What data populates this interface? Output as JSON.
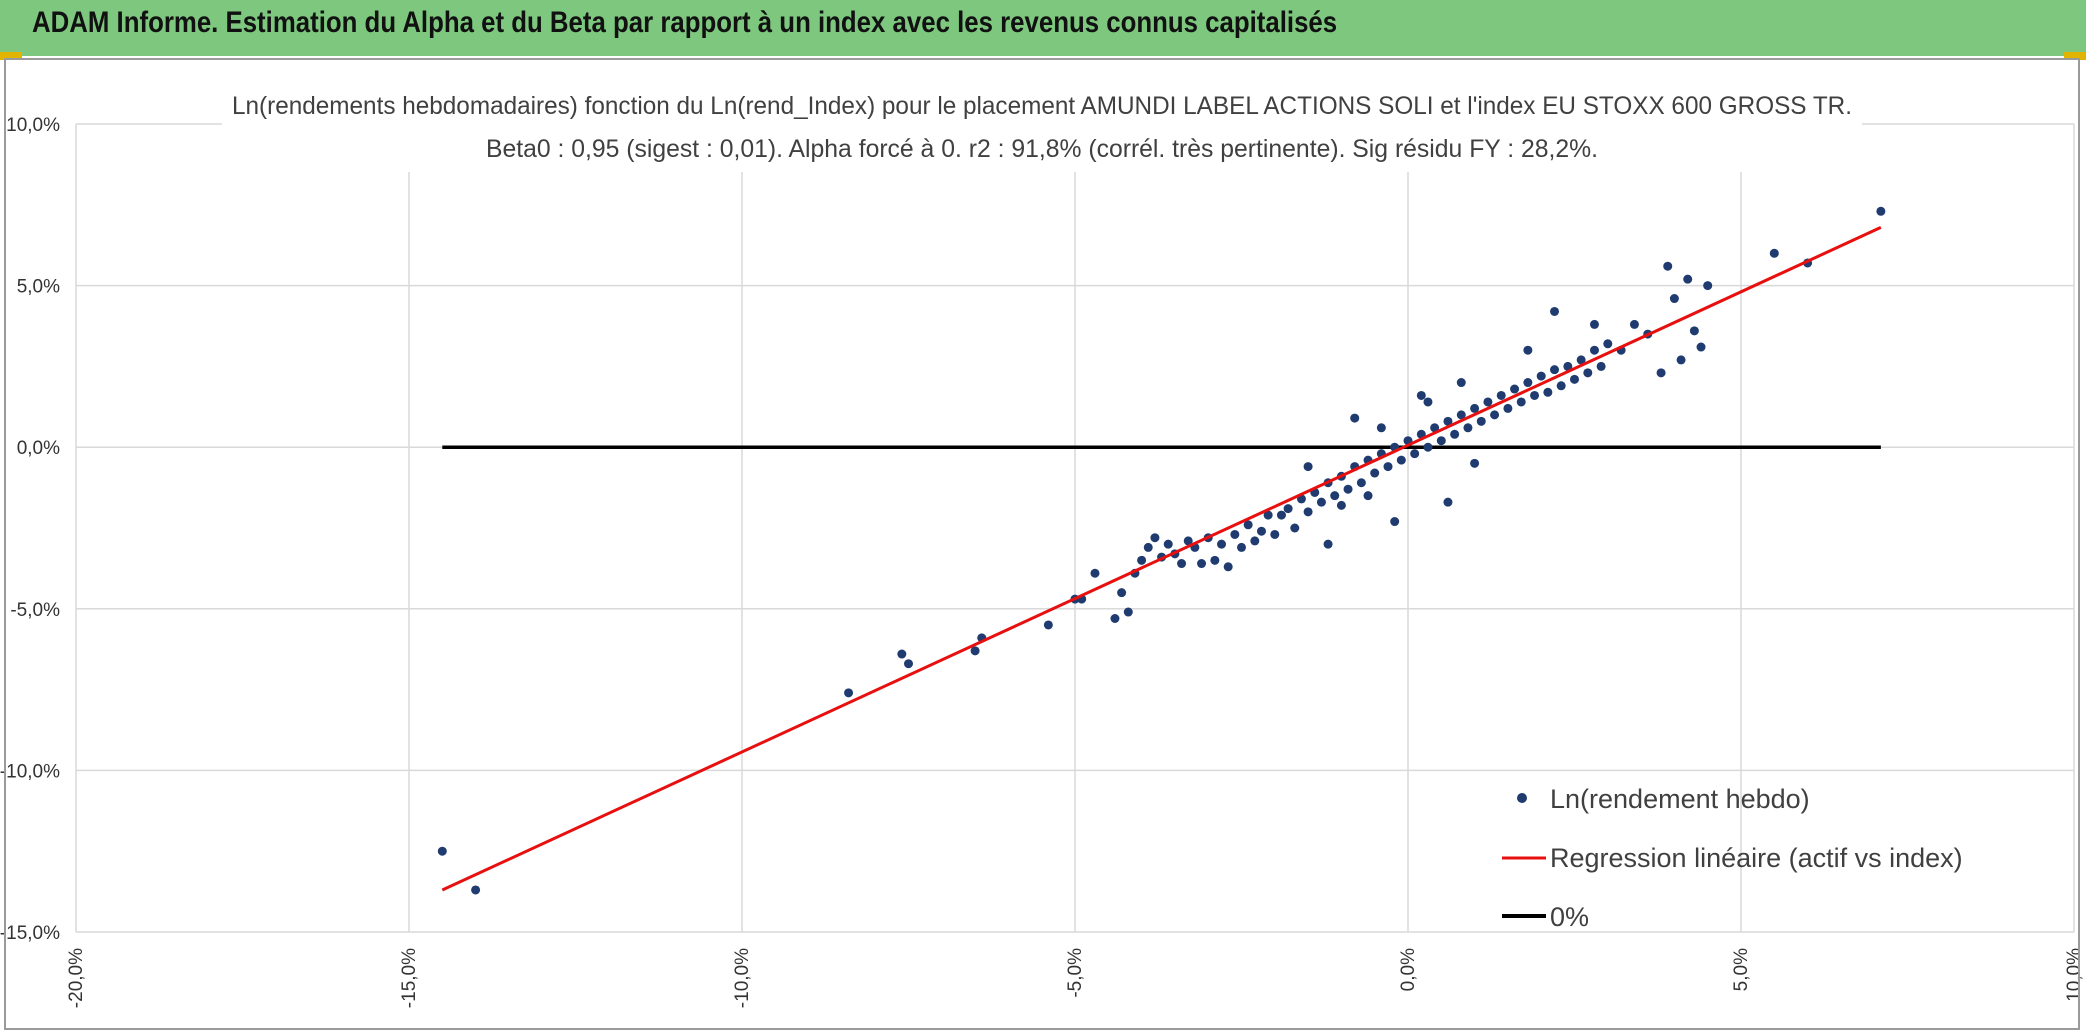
{
  "header": {
    "title": "ADAM Informe. Estimation du Alpha et du Beta par rapport à un index avec les revenus connus capitalisés",
    "background": "#7dc87e"
  },
  "chart_data": {
    "type": "scatter",
    "title_line1": "Ln(rendements hebdomadaires) fonction du Ln(rend_Index) pour le placement AMUNDI LABEL ACTIONS SOLI et l'index EU STOXX 600 GROSS TR.",
    "title_line2": "Beta0 : 0,95 (sigest : 0,01). Alpha forcé à 0. r2 : 91,8% (corrél. très pertinente). Sig résidu FY : 28,2%.",
    "xlabel": "",
    "ylabel": "",
    "xlim": [
      -0.2,
      0.1
    ],
    "ylim": [
      -0.15,
      0.1
    ],
    "x_ticks": [
      -0.2,
      -0.15,
      -0.1,
      -0.05,
      0.0,
      0.05,
      0.1
    ],
    "x_tick_labels": [
      "-20,0%",
      "-15,0%",
      "-10,0%",
      "-5,0%",
      "0,0%",
      "5,0%",
      "10,0%"
    ],
    "y_ticks": [
      0.1,
      0.05,
      0.0,
      -0.05,
      -0.1,
      -0.15
    ],
    "y_tick_labels": [
      "10,0%",
      "5,0%",
      "0,0%",
      "-5,0%",
      "-10,0%",
      "-15,0%"
    ],
    "grid": true,
    "legend_position": "bottom-right",
    "series": [
      {
        "name": "Ln(rendement hebdo)",
        "type": "scatter",
        "color": "#1f3b70",
        "points": [
          [
            -0.145,
            -0.125
          ],
          [
            -0.14,
            -0.137
          ],
          [
            -0.084,
            -0.076
          ],
          [
            -0.076,
            -0.064
          ],
          [
            -0.075,
            -0.067
          ],
          [
            -0.065,
            -0.063
          ],
          [
            -0.064,
            -0.059
          ],
          [
            -0.054,
            -0.055
          ],
          [
            -0.05,
            -0.047
          ],
          [
            -0.049,
            -0.047
          ],
          [
            -0.047,
            -0.039
          ],
          [
            -0.044,
            -0.053
          ],
          [
            -0.043,
            -0.045
          ],
          [
            -0.042,
            -0.051
          ],
          [
            -0.041,
            -0.039
          ],
          [
            -0.04,
            -0.035
          ],
          [
            -0.039,
            -0.031
          ],
          [
            -0.038,
            -0.028
          ],
          [
            -0.037,
            -0.034
          ],
          [
            -0.036,
            -0.03
          ],
          [
            -0.035,
            -0.033
          ],
          [
            -0.034,
            -0.036
          ],
          [
            -0.033,
            -0.029
          ],
          [
            -0.032,
            -0.031
          ],
          [
            -0.031,
            -0.036
          ],
          [
            -0.03,
            -0.028
          ],
          [
            -0.029,
            -0.035
          ],
          [
            -0.028,
            -0.03
          ],
          [
            -0.027,
            -0.037
          ],
          [
            -0.026,
            -0.027
          ],
          [
            -0.025,
            -0.031
          ],
          [
            -0.024,
            -0.024
          ],
          [
            -0.023,
            -0.029
          ],
          [
            -0.022,
            -0.026
          ],
          [
            -0.021,
            -0.021
          ],
          [
            -0.02,
            -0.027
          ],
          [
            -0.019,
            -0.021
          ],
          [
            -0.018,
            -0.019
          ],
          [
            -0.017,
            -0.025
          ],
          [
            -0.016,
            -0.016
          ],
          [
            -0.015,
            -0.02
          ],
          [
            -0.014,
            -0.014
          ],
          [
            -0.013,
            -0.017
          ],
          [
            -0.012,
            -0.011
          ],
          [
            -0.011,
            -0.015
          ],
          [
            -0.01,
            -0.009
          ],
          [
            -0.009,
            -0.013
          ],
          [
            -0.008,
            -0.006
          ],
          [
            -0.007,
            -0.011
          ],
          [
            -0.006,
            -0.004
          ],
          [
            -0.005,
            -0.008
          ],
          [
            -0.004,
            -0.002
          ],
          [
            -0.003,
            -0.006
          ],
          [
            -0.002,
            0.0
          ],
          [
            -0.001,
            -0.004
          ],
          [
            0.0,
            0.002
          ],
          [
            0.001,
            -0.002
          ],
          [
            0.002,
            0.004
          ],
          [
            0.003,
            0.0
          ],
          [
            0.004,
            0.006
          ],
          [
            0.005,
            0.002
          ],
          [
            0.006,
            0.008
          ],
          [
            0.007,
            0.004
          ],
          [
            0.008,
            0.01
          ],
          [
            0.009,
            0.006
          ],
          [
            0.01,
            0.012
          ],
          [
            0.011,
            0.008
          ],
          [
            0.012,
            0.014
          ],
          [
            0.013,
            0.01
          ],
          [
            0.014,
            0.016
          ],
          [
            0.015,
            0.012
          ],
          [
            0.016,
            0.018
          ],
          [
            0.017,
            0.014
          ],
          [
            0.018,
            0.02
          ],
          [
            0.019,
            0.016
          ],
          [
            0.02,
            0.022
          ],
          [
            0.021,
            0.017
          ],
          [
            0.022,
            0.024
          ],
          [
            0.023,
            0.019
          ],
          [
            0.024,
            0.025
          ],
          [
            0.025,
            0.021
          ],
          [
            0.026,
            0.027
          ],
          [
            0.027,
            0.023
          ],
          [
            0.028,
            0.03
          ],
          [
            0.029,
            0.025
          ],
          [
            0.03,
            0.032
          ],
          [
            0.032,
            0.03
          ],
          [
            0.034,
            0.038
          ],
          [
            0.036,
            0.035
          ],
          [
            0.038,
            0.023
          ],
          [
            0.039,
            0.056
          ],
          [
            0.04,
            0.046
          ],
          [
            0.041,
            0.027
          ],
          [
            0.042,
            0.052
          ],
          [
            0.043,
            0.036
          ],
          [
            0.044,
            0.031
          ],
          [
            0.045,
            0.05
          ],
          [
            0.055,
            0.06
          ],
          [
            0.06,
            0.057
          ],
          [
            0.071,
            0.073
          ],
          [
            -0.006,
            -0.015
          ],
          [
            -0.012,
            -0.03
          ],
          [
            -0.008,
            0.009
          ],
          [
            -0.002,
            -0.023
          ],
          [
            0.006,
            -0.017
          ],
          [
            0.003,
            0.014
          ],
          [
            -0.004,
            0.006
          ],
          [
            0.01,
            -0.005
          ],
          [
            0.002,
            0.016
          ],
          [
            -0.015,
            -0.006
          ],
          [
            0.022,
            0.042
          ],
          [
            0.028,
            0.038
          ],
          [
            0.018,
            0.03
          ],
          [
            0.008,
            0.02
          ],
          [
            -0.01,
            -0.018
          ]
        ]
      },
      {
        "name": "Regression linéaire (actif vs index)",
        "type": "line",
        "color": "#e8100f",
        "points": [
          [
            -0.145,
            -0.137
          ],
          [
            0.071,
            0.068
          ]
        ]
      },
      {
        "name": "0%",
        "type": "line",
        "color": "#000000",
        "points": [
          [
            -0.145,
            0.0
          ],
          [
            0.071,
            0.0
          ]
        ]
      }
    ]
  }
}
